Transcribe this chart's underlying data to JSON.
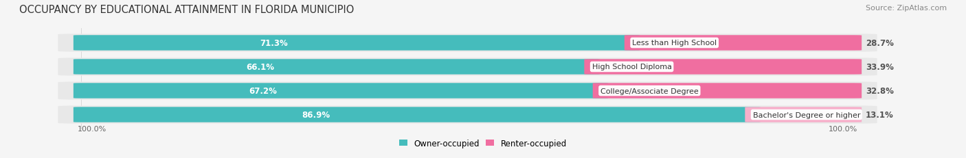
{
  "title": "OCCUPANCY BY EDUCATIONAL ATTAINMENT IN FLORIDA MUNICIPIO",
  "source": "Source: ZipAtlas.com",
  "categories": [
    "Less than High School",
    "High School Diploma",
    "College/Associate Degree",
    "Bachelor's Degree or higher"
  ],
  "owner_pct": [
    71.3,
    66.1,
    67.2,
    86.9
  ],
  "renter_pct": [
    28.7,
    33.9,
    32.8,
    13.1
  ],
  "owner_color": "#45BCBC",
  "renter_color_normal": "#F06EA0",
  "renter_color_light": "#F7AFCA",
  "bg_color": "#f5f5f5",
  "row_bg_color": "#e8e8e8",
  "title_fontsize": 10.5,
  "source_fontsize": 8,
  "bar_label_fontsize": 8.5,
  "cat_label_fontsize": 8,
  "legend_fontsize": 8.5,
  "bar_height": 0.62,
  "ylim_label_left": "100.0%",
  "ylim_label_right": "100.0%"
}
